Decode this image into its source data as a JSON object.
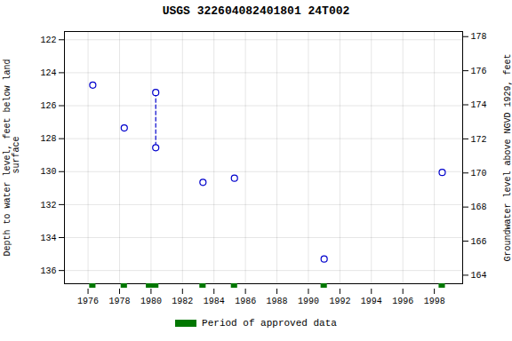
{
  "chart_data": {
    "type": "scatter",
    "title": "USGS 322604082401801 24T002",
    "ylabel": "Depth to water level, feet below land\n surface",
    "y2label": "Groundwater level above NGVD 1929, feet",
    "x": [
      1976.3,
      1978.3,
      1980.3,
      1980.3,
      1983.3,
      1985.3,
      1991.0,
      1998.5
    ],
    "values": [
      124.75,
      127.35,
      125.2,
      128.55,
      130.65,
      130.4,
      135.3,
      130.05
    ],
    "color": "#0000CC",
    "marker": "open_circle",
    "xlim": [
      1974.5,
      1999.8
    ],
    "xticks": [
      1976,
      1978,
      1980,
      1982,
      1984,
      1986,
      1988,
      1990,
      1992,
      1994,
      1996,
      1998
    ],
    "ylim": [
      136.8,
      121.5
    ],
    "yticks": [
      122,
      124,
      126,
      128,
      130,
      132,
      134,
      136
    ],
    "y2lim": [
      163.5,
      178.3
    ],
    "y2ticks": [
      164,
      166,
      168,
      170,
      172,
      174,
      176,
      178
    ],
    "grid": true,
    "legend": "bottom",
    "dashed_line": {
      "x": [
        1980.3,
        1980.3
      ],
      "values": [
        125.2,
        128.55
      ],
      "color": "#0000CC",
      "line_style": "dashed"
    },
    "approved_periods": {
      "name": "Period of approved data",
      "color": "#007700",
      "x": [
        1976.3,
        1978.3,
        1980.1,
        1983.3,
        1985.3,
        1991.0,
        1998.5
      ],
      "width": [
        0.4,
        0.4,
        0.8,
        0.4,
        0.4,
        0.4,
        0.4
      ]
    }
  }
}
